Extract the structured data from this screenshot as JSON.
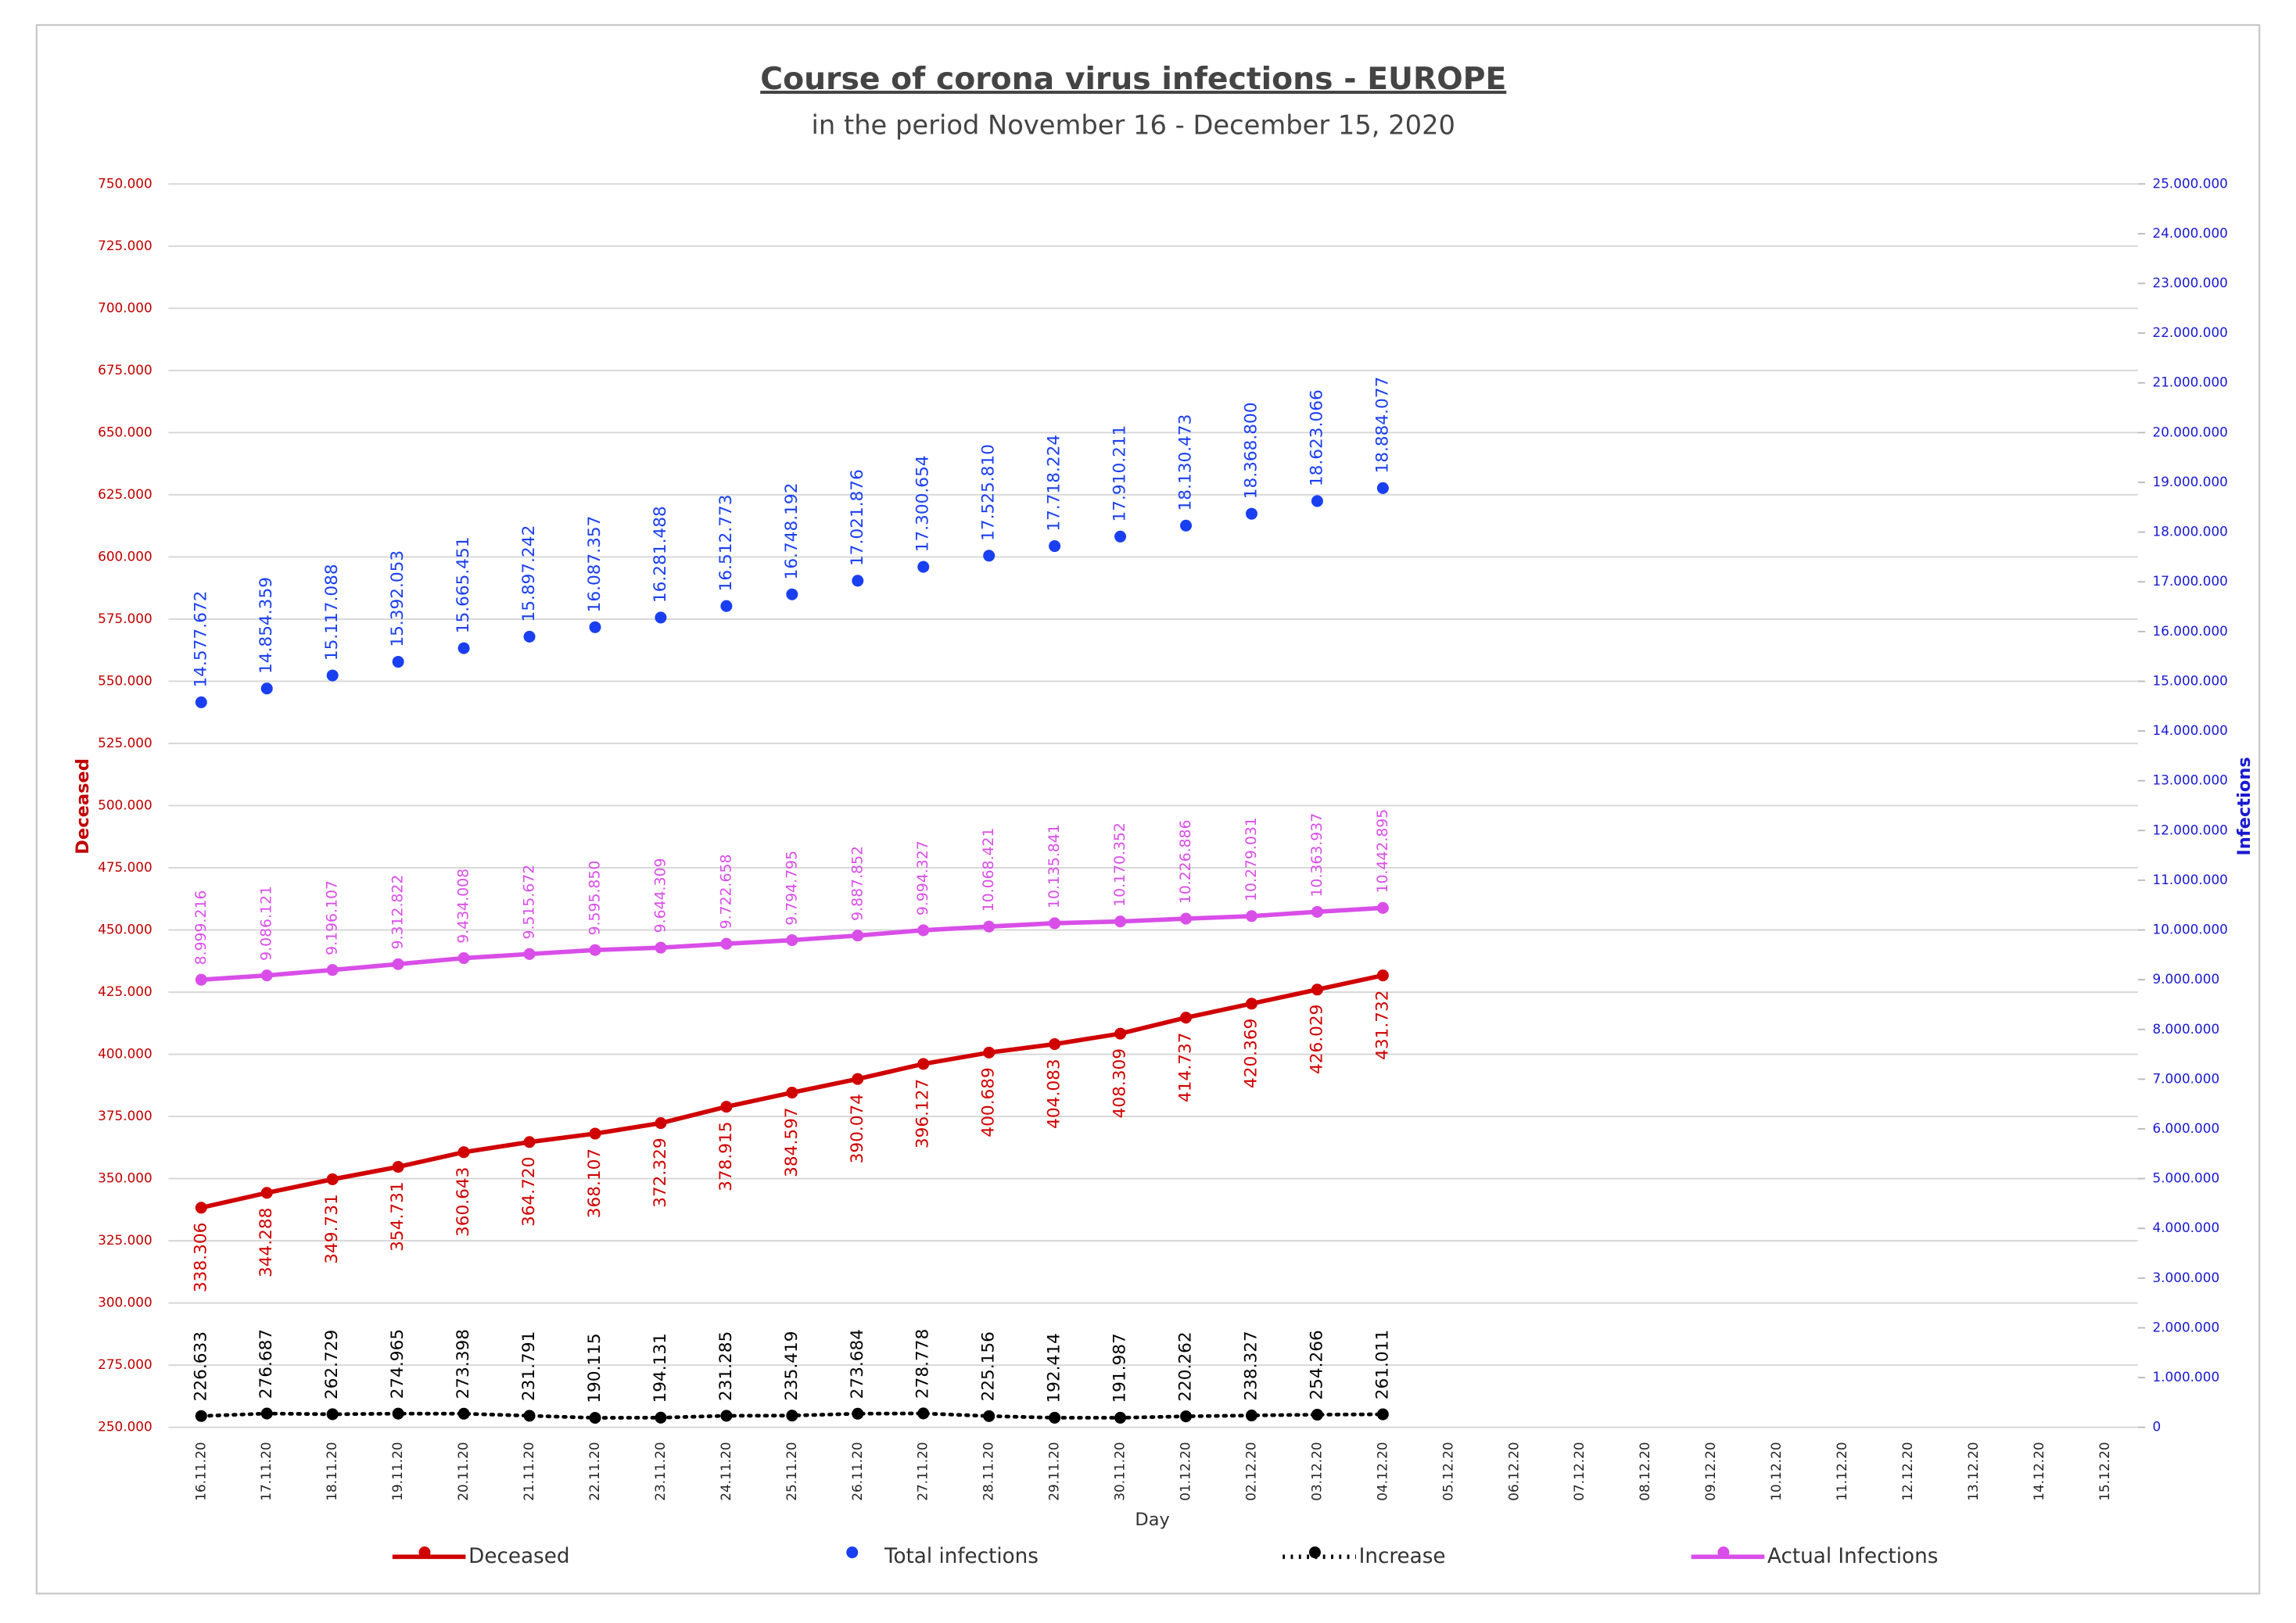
{
  "chart_data": {
    "type": "line",
    "title": "Course of corona virus infections - EUROPE",
    "subtitle": "in the period November 16 - December 15, 2020",
    "xlabel": "Day",
    "ylabel": "Deceased",
    "y2label": "Infections",
    "grid": true,
    "legend": "bottom",
    "categories": [
      "16.11.20",
      "17.11.20",
      "18.11.20",
      "19.11.20",
      "20.11.20",
      "21.11.20",
      "22.11.20",
      "23.11.20",
      "24.11.20",
      "25.11.20",
      "26.11.20",
      "27.11.20",
      "28.11.20",
      "29.11.20",
      "30.11.20",
      "01.12.20",
      "02.12.20",
      "03.12.20",
      "04.12.20",
      "05.12.20",
      "06.12.20",
      "07.12.20",
      "08.12.20",
      "09.12.20",
      "10.12.20",
      "11.12.20",
      "12.12.20",
      "13.12.20",
      "14.12.20",
      "15.12.20"
    ],
    "ylim": [
      250000,
      750000
    ],
    "yticks": [
      {
        "value": 250000,
        "label": "250.000"
      },
      {
        "value": 275000,
        "label": "275.000"
      },
      {
        "value": 300000,
        "label": "300.000"
      },
      {
        "value": 325000,
        "label": "325.000"
      },
      {
        "value": 350000,
        "label": "350.000"
      },
      {
        "value": 375000,
        "label": "375.000"
      },
      {
        "value": 400000,
        "label": "400.000"
      },
      {
        "value": 425000,
        "label": "425.000"
      },
      {
        "value": 450000,
        "label": "450.000"
      },
      {
        "value": 475000,
        "label": "475.000"
      },
      {
        "value": 500000,
        "label": "500.000"
      },
      {
        "value": 525000,
        "label": "525.000"
      },
      {
        "value": 550000,
        "label": "550.000"
      },
      {
        "value": 575000,
        "label": "575.000"
      },
      {
        "value": 600000,
        "label": "600.000"
      },
      {
        "value": 625000,
        "label": "625.000"
      },
      {
        "value": 650000,
        "label": "650.000"
      },
      {
        "value": 675000,
        "label": "675.000"
      },
      {
        "value": 700000,
        "label": "700.000"
      },
      {
        "value": 725000,
        "label": "725.000"
      },
      {
        "value": 750000,
        "label": "750.000"
      }
    ],
    "y2lim": [
      0,
      25000000
    ],
    "y2ticks": [
      0,
      {
        "value": 1000000,
        "label": "1.000.000"
      },
      {
        "value": 2000000,
        "label": "2.000.000"
      },
      {
        "value": 3000000,
        "label": "3.000.000"
      },
      {
        "value": 4000000,
        "label": "4.000.000"
      },
      {
        "value": 5000000,
        "label": "5.000.000"
      },
      {
        "value": 6000000,
        "label": "6.000.000"
      },
      {
        "value": 7000000,
        "label": "7.000.000"
      },
      {
        "value": 8000000,
        "label": "8.000.000"
      },
      {
        "value": 9000000,
        "label": "9.000.000"
      },
      {
        "value": 10000000,
        "label": "10.000.000"
      },
      {
        "value": 11000000,
        "label": "11.000.000"
      },
      {
        "value": 12000000,
        "label": "12.000.000"
      },
      {
        "value": 13000000,
        "label": "13.000.000"
      },
      {
        "value": 14000000,
        "label": "14.000.000"
      },
      {
        "value": 15000000,
        "label": "15.000.000"
      },
      {
        "value": 16000000,
        "label": "16.000.000"
      },
      {
        "value": 17000000,
        "label": "17.000.000"
      },
      {
        "value": 18000000,
        "label": "18.000.000"
      },
      {
        "value": 19000000,
        "label": "19.000.000"
      },
      {
        "value": 20000000,
        "label": "20.000.000"
      },
      {
        "value": 21000000,
        "label": "21.000.000"
      },
      {
        "value": 22000000,
        "label": "22.000.000"
      },
      {
        "value": 23000000,
        "label": "23.000.000"
      },
      {
        "value": 24000000,
        "label": "24.000.000"
      },
      {
        "value": 25000000,
        "label": "25.000.000"
      }
    ],
    "series": [
      {
        "name": "Deceased",
        "color": "#d00000",
        "line_style": "solid",
        "label_position": "below",
        "values": [
          338306,
          344288,
          349731,
          354731,
          360643,
          364720,
          368107,
          372329,
          378915,
          384597,
          390074,
          396127,
          400689,
          404083,
          408309,
          414737,
          420369,
          426029,
          431732,
          null,
          null,
          null,
          null,
          null,
          null,
          null,
          null,
          null,
          null,
          null
        ],
        "value_labels": [
          "338.306",
          "344.288",
          "349.731",
          "354.731",
          "360.643",
          "364.720",
          "368.107",
          "372.329",
          "378.915",
          "384.597",
          "390.074",
          "396.127",
          "400.689",
          "404.083",
          "408.309",
          "414.737",
          "420.369",
          "426.029",
          "431.732",
          null,
          null,
          null,
          null,
          null,
          null,
          null,
          null,
          null,
          null,
          null
        ]
      },
      {
        "name": "Total infections",
        "color": "#1a3ff0",
        "axis": "y2",
        "line_style": "none",
        "label_position": "above",
        "values": [
          14577672,
          14854359,
          15117088,
          15392053,
          15665451,
          15897242,
          16087357,
          16281488,
          16512773,
          16748192,
          17021876,
          17300654,
          17525810,
          17718224,
          17910211,
          18130473,
          18368800,
          18623066,
          18884077,
          null,
          null,
          null,
          null,
          null,
          null,
          null,
          null,
          null,
          null,
          null
        ],
        "value_labels": [
          "14.577.672",
          "14.854.359",
          "15.117.088",
          "15.392.053",
          "15.665.451",
          "15.897.242",
          "16.087.357",
          "16.281.488",
          "16.512.773",
          "16.748.192",
          "17.021.876",
          "17.300.654",
          "17.525.810",
          "17.718.224",
          "17.910.211",
          "18.130.473",
          "18.368.800",
          "18.623.066",
          "18.884.077",
          null,
          null,
          null,
          null,
          null,
          null,
          null,
          null,
          null,
          null,
          null
        ]
      },
      {
        "name": "Increase",
        "color": "#000000",
        "axis": "y2",
        "line_style": "dotted",
        "label_position": "above",
        "values": [
          226633,
          276687,
          262729,
          274965,
          273398,
          231791,
          190115,
          194131,
          231285,
          235419,
          273684,
          278778,
          225156,
          192414,
          191987,
          220262,
          238327,
          254266,
          261011,
          null,
          null,
          null,
          null,
          null,
          null,
          null,
          null,
          null,
          null,
          null
        ],
        "value_labels": [
          "226.633",
          "276.687",
          "262.729",
          "274.965",
          "273.398",
          "231.791",
          "190.115",
          "194.131",
          "231.285",
          "235.419",
          "273.684",
          "278.778",
          "225.156",
          "192.414",
          "191.987",
          "220.262",
          "238.327",
          "254.266",
          "261.011",
          null,
          null,
          null,
          null,
          null,
          null,
          null,
          null,
          null,
          null,
          null
        ]
      },
      {
        "name": "Actual Infections",
        "color": "#d94ee8",
        "axis": "y2",
        "line_style": "solid",
        "label_position": "above",
        "values": [
          8999216,
          9086121,
          9196107,
          9312822,
          9434008,
          9515672,
          9595850,
          9644309,
          9722658,
          9794795,
          9887852,
          9994327,
          10068421,
          10135841,
          10170352,
          10226886,
          10279031,
          10363937,
          10442895,
          null,
          null,
          null,
          null,
          null,
          null,
          null,
          null,
          null,
          null,
          null
        ],
        "value_labels": [
          "8.999.216",
          "9.086.121",
          "9.196.107",
          "9.312.822",
          "9.434.008",
          "9.515.672",
          "9.595.850",
          "9.644.309",
          "9.722.658",
          "9.794.795",
          "9.887.852",
          "9.994.327",
          "10.068.421",
          "10.135.841",
          "10.170.352",
          "10.226.886",
          "10.279.031",
          "10.363.937",
          "10.442.895",
          null,
          null,
          null,
          null,
          null,
          null,
          null,
          null,
          null,
          null,
          null
        ]
      }
    ]
  }
}
